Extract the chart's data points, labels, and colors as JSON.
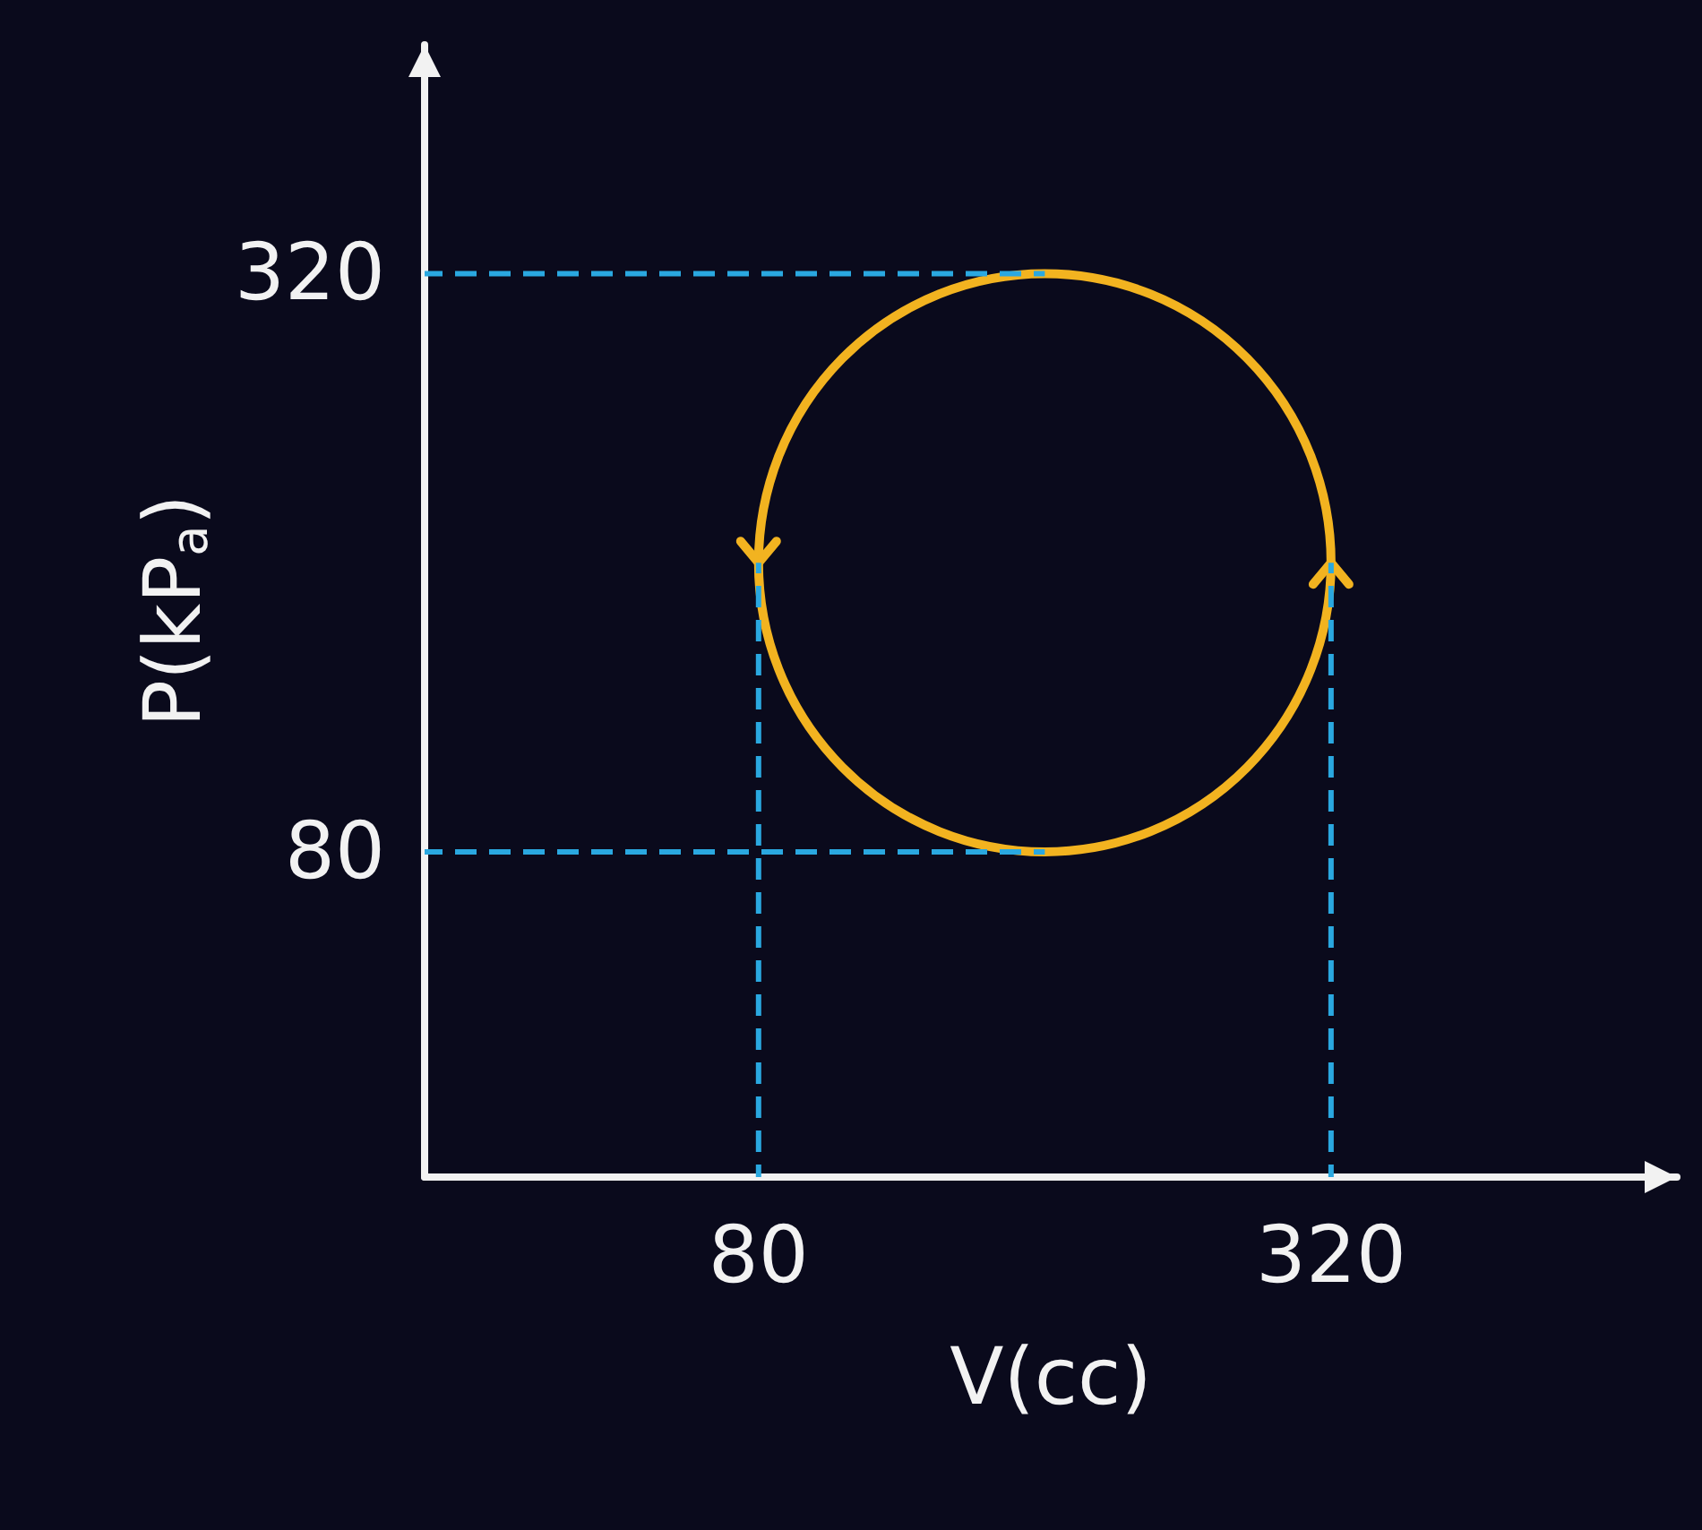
{
  "chart_data": {
    "type": "line",
    "xlabel": "V(cc)",
    "ylabel": "P(kP$_{a}$)",
    "xlim": [
      -60,
      465
    ],
    "ylim": [
      -55,
      415
    ],
    "xticks": [
      80,
      320
    ],
    "yticks": [
      80,
      320
    ],
    "grid": false,
    "marker": "none",
    "series": [
      {
        "color": "#2aa8e0",
        "line_style": "dashed",
        "x": [
          -60,
          200
        ],
        "values": [
          320,
          320
        ]
      },
      {
        "color": "#2aa8e0",
        "line_style": "dashed",
        "x": [
          -60,
          200
        ],
        "values": [
          80,
          80
        ]
      },
      {
        "color": "#2aa8e0",
        "line_style": "dashed",
        "x": [
          80,
          80
        ],
        "values": [
          -55,
          200
        ]
      },
      {
        "color": "#2aa8e0",
        "line_style": "dashed",
        "x": [
          320,
          320
        ],
        "values": [
          -55,
          200
        ]
      }
    ]
  }
}
